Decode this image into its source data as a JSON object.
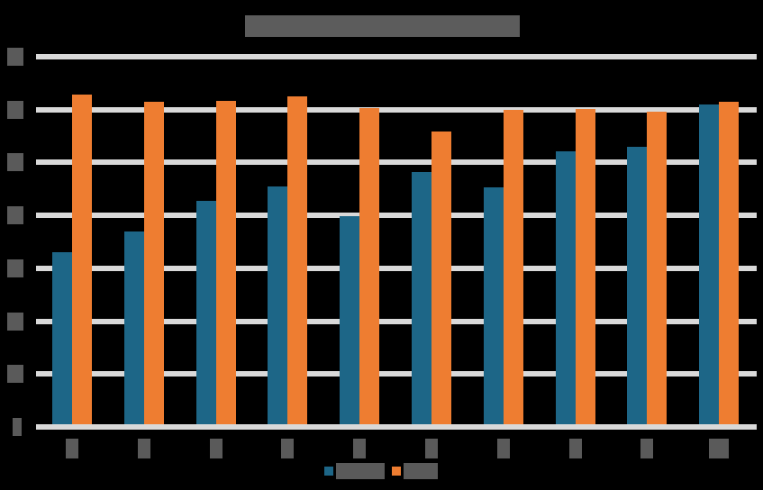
{
  "chart_data": {
    "type": "bar",
    "title": "████████████████████",
    "xlabel": "",
    "ylabel": "",
    "categories": [
      "1",
      "2",
      "3",
      "4",
      "5",
      "6",
      "7",
      "8",
      "9",
      "10"
    ],
    "series": [
      {
        "name": "█████",
        "color": "#1d6687",
        "values": [
          32.5,
          36.5,
          42.2,
          45.0,
          39.4,
          47.7,
          44.8,
          51.6,
          52.5,
          60.5
        ]
      },
      {
        "name": "███",
        "color": "#ee7d31",
        "values": [
          62.3,
          61.0,
          61.2,
          62.0,
          59.8,
          55.4,
          59.5,
          59.6,
          59.1,
          61.0
        ]
      }
    ],
    "ylim": [
      0,
      70
    ],
    "yticks": [
      "0",
      "10",
      "20",
      "30",
      "40",
      "50",
      "60",
      "70"
    ],
    "grid": true,
    "legend_position": "bottom"
  }
}
